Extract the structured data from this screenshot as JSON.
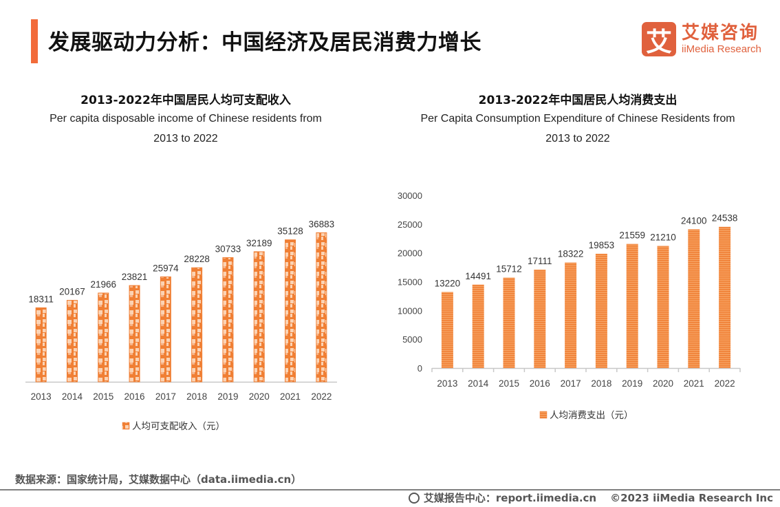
{
  "header": {
    "title": "发展驱动力分析：中国经济及居民消费力增长",
    "accent_color": "#f26b3a"
  },
  "logo": {
    "icon_glyph": "艾",
    "cn": "艾媒咨询",
    "en": "iiMedia Research",
    "color": "#e0613d"
  },
  "chart_data": [
    {
      "type": "bar",
      "title": "2013-2022年中国居民人均可支配收入",
      "subtitle_line1": "Per capita disposable income of Chinese residents from",
      "subtitle_line2": "2013 to 2022",
      "categories": [
        "2013",
        "2014",
        "2015",
        "2016",
        "2017",
        "2018",
        "2019",
        "2020",
        "2021",
        "2022"
      ],
      "values": [
        18311,
        20167,
        21966,
        23821,
        25974,
        28228,
        30733,
        32189,
        35128,
        36883
      ],
      "legend": "人均可支配收入（元）",
      "legend_position": "bottom",
      "y_axis_visible": false,
      "ylim": [
        0,
        40000
      ],
      "bar_color": "#f07f34",
      "pattern": "checker",
      "grid": false
    },
    {
      "type": "bar",
      "title": "2013-2022年中国居民人均消费支出",
      "subtitle_line1": "Per Capita Consumption Expenditure of Chinese Residents from",
      "subtitle_line2": "2013 to 2022",
      "categories": [
        "2013",
        "2014",
        "2015",
        "2016",
        "2017",
        "2018",
        "2019",
        "2020",
        "2021",
        "2022"
      ],
      "values": [
        13220,
        14491,
        15712,
        17111,
        18322,
        19853,
        21559,
        21210,
        24100,
        24538
      ],
      "legend": "人均消费支出（元）",
      "legend_position": "bottom",
      "y_axis_visible": true,
      "y_ticks": [
        "0",
        "5000",
        "10000",
        "15000",
        "20000",
        "25000",
        "30000"
      ],
      "ylim": [
        0,
        30000
      ],
      "bar_color": "#f07f34",
      "pattern": "horizontal-stripes",
      "grid": false
    }
  ],
  "footer": {
    "source": "数据来源：国家统计局，艾媒数据中心（data.iimedia.cn）",
    "report_center": "艾媒报告中心：report.iimedia.cn",
    "copyright": "©2023  iiMedia Research  Inc"
  }
}
